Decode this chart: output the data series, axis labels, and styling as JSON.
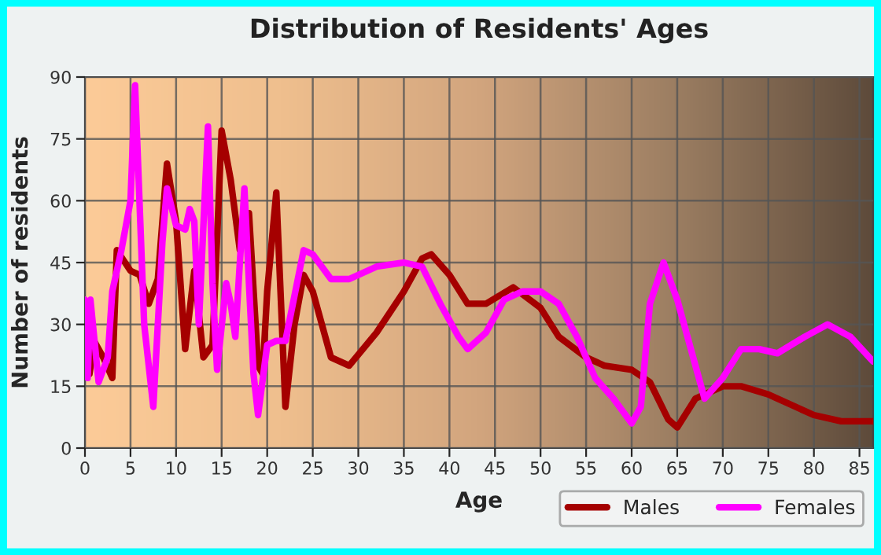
{
  "chart_data": {
    "type": "line",
    "title": "Distribution of Residents' Ages",
    "xlabel": "Age",
    "ylabel": "Number of residents",
    "xlim": [
      0,
      86.5
    ],
    "xticks": [
      0,
      5,
      10,
      15,
      20,
      25,
      30,
      35,
      40,
      45,
      50,
      55,
      60,
      65,
      70,
      75,
      80,
      85
    ],
    "ylim": [
      0,
      90
    ],
    "yticks": [
      0,
      15,
      30,
      45,
      60,
      75,
      90
    ],
    "grid": true,
    "legend": "bottom right",
    "line_style": "solid",
    "marker": "none",
    "series": [
      {
        "name": "Males",
        "color": "#a50000",
        "x": [
          0,
          0.5,
          1,
          2,
          3,
          3.5,
          5,
          6,
          7,
          8,
          9,
          10,
          11,
          12,
          13,
          14,
          15,
          16,
          17,
          18,
          19,
          19.5,
          20,
          21,
          22,
          23,
          24,
          25,
          27,
          29,
          32,
          35,
          37,
          38,
          40,
          42,
          44,
          47,
          50,
          52,
          55,
          57,
          60,
          62,
          64,
          65,
          67,
          70,
          72,
          75,
          78,
          80,
          83,
          86.5
        ],
        "values": [
          26,
          18,
          26,
          22,
          17,
          48,
          43,
          42,
          35,
          41,
          69,
          55,
          24,
          43,
          22,
          25,
          77,
          65,
          48,
          57,
          20,
          18,
          38,
          62,
          10,
          30,
          42,
          38,
          22,
          20,
          28,
          38,
          46,
          47,
          42,
          35,
          35,
          39,
          34,
          27,
          22,
          20,
          19,
          16,
          7,
          5,
          12,
          15,
          15,
          13,
          10,
          8,
          6.5,
          6.5
        ]
      },
      {
        "name": "Females",
        "color": "#ff00ff",
        "x": [
          0,
          0.3,
          0.6,
          1.5,
          2.5,
          3,
          4,
          5,
          5.5,
          6.5,
          7.5,
          8.5,
          9,
          10,
          11,
          11.5,
          12,
          12.5,
          13.5,
          14,
          14.5,
          15.5,
          16,
          16.5,
          17.5,
          18,
          18.5,
          19,
          20,
          21,
          22,
          24,
          25,
          27,
          29,
          32,
          35,
          37,
          39,
          41,
          42,
          44,
          46,
          48,
          50,
          52,
          54,
          56,
          58,
          60,
          61,
          62,
          63.5,
          65,
          67,
          68,
          70,
          72,
          74,
          76,
          79,
          81.5,
          84,
          86.5
        ],
        "values": [
          36,
          17,
          36,
          16,
          22,
          38,
          48,
          60,
          88,
          30,
          10,
          50,
          63,
          54,
          53,
          58,
          55,
          30,
          78,
          40,
          19,
          40,
          35,
          27,
          63,
          40,
          18,
          8,
          25,
          26,
          26,
          48,
          47,
          41,
          41,
          44,
          45,
          44,
          35,
          27,
          24,
          28,
          36,
          38,
          38,
          35,
          27,
          17,
          12,
          6,
          10,
          35,
          45,
          36,
          20,
          12,
          17,
          24,
          24,
          23,
          27,
          30,
          27,
          21
        ]
      }
    ]
  }
}
